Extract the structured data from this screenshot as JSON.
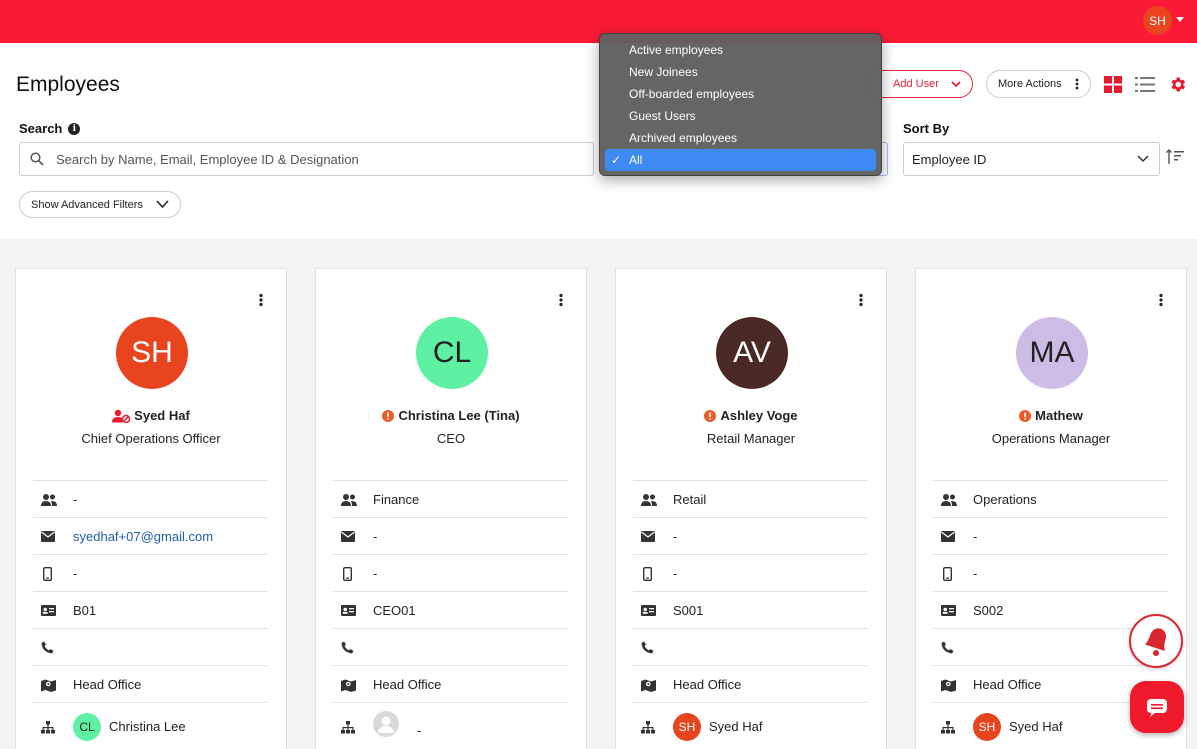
{
  "topbar": {
    "avatar_initials": "SH",
    "avatar_color": "#e8441d",
    "bar_color": "#fa1a35"
  },
  "header": {
    "title": "Employees",
    "add_user_label": "Add User",
    "more_actions_label": "More Actions",
    "search_label": "Search",
    "search_placeholder": "Search by Name, Email, Employee ID & Designation",
    "sort_label": "Sort By",
    "sort_value": "Employee ID",
    "advanced_filters_label": "Show Advanced Filters"
  },
  "status_dropdown": {
    "options": [
      "Active employees",
      "New Joinees",
      "Off-boarded employees",
      "Guest Users",
      "Archived employees",
      "All"
    ],
    "selected": "All"
  },
  "cards": [
    {
      "initials": "SH",
      "avatar_color": "#e8441d",
      "status_icon": "user-lock-icon",
      "name": "Syed Haf",
      "designation": "Chief Operations Officer",
      "department": "-",
      "email": "syedhaf+07@gmail.com",
      "mobile": "-",
      "employee_id": "B01",
      "phone": "",
      "location": "Head Office",
      "manager": {
        "initials": "CL",
        "name": "Christina Lee",
        "color": "#5ef0a3"
      }
    },
    {
      "initials": "CL",
      "avatar_color": "#5ef0a3",
      "status_icon": "alert-icon",
      "name": "Christina Lee (Tina)",
      "designation": "CEO",
      "department": "Finance",
      "email": "-",
      "mobile": "-",
      "employee_id": "CEO01",
      "phone": "",
      "location": "Head Office",
      "manager": {
        "initials": "",
        "name": "-",
        "color": "#d9d9d9"
      }
    },
    {
      "initials": "AV",
      "avatar_color": "#4a2925",
      "status_icon": "alert-icon",
      "name": "Ashley Voge",
      "designation": "Retail Manager",
      "department": "Retail",
      "email": "-",
      "mobile": "-",
      "employee_id": "S001",
      "phone": "",
      "location": "Head Office",
      "manager": {
        "initials": "SH",
        "name": "Syed Haf",
        "color": "#e8441d"
      }
    },
    {
      "initials": "MA",
      "avatar_color": "#cdbde6",
      "status_icon": "alert-icon",
      "name": "Mathew",
      "designation": "Operations Manager",
      "department": "Operations",
      "email": "-",
      "mobile": "-",
      "employee_id": "S002",
      "phone": "",
      "location": "Head Office",
      "manager": {
        "initials": "SH",
        "name": "Syed Haf",
        "color": "#e8441d"
      }
    }
  ]
}
